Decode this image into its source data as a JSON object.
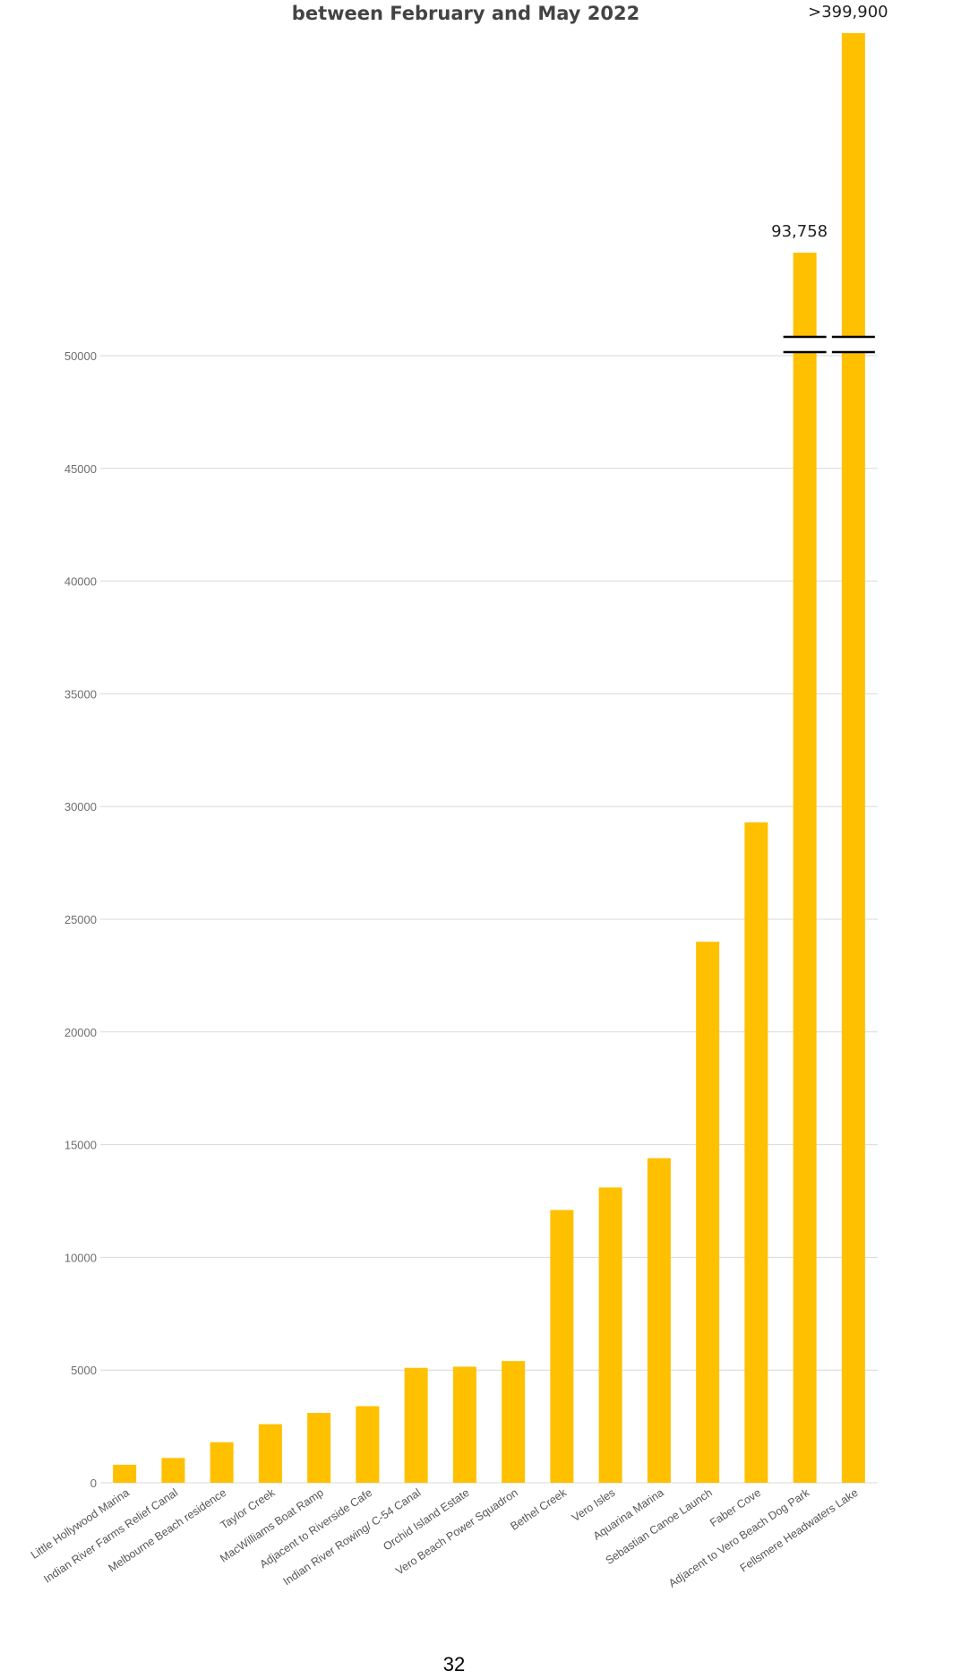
{
  "chart_data": {
    "type": "bar",
    "title": "between February and May 2022",
    "xlabel": "",
    "ylabel": "",
    "ylim": [
      0,
      50000
    ],
    "yticks": [
      0,
      5000,
      10000,
      15000,
      20000,
      25000,
      30000,
      35000,
      40000,
      45000,
      50000
    ],
    "y_axis_break": true,
    "grid": true,
    "legend": "none",
    "bar_color": "#FFC000",
    "categories": [
      "Little Hollywood Marina",
      "Indian River Farms Relief Canal",
      "Melbourne Beach residence",
      "Taylor Creek",
      "MacWilliams Boat Ramp",
      "Adjacent to Riverside Cafe",
      "Indian River Rowing/ C-54 Canal",
      "Orchid Island Estate",
      "Vero Beach Power Squadron",
      "Bethel Creek",
      "Vero Isles",
      "Aquarina Marina",
      "Sebastian Canoe Launch",
      "Faber Cove",
      "Adjacent to Vero Beach Dog Park",
      "Fellsmere Headwaters Lake"
    ],
    "values": [
      800,
      1100,
      1800,
      2600,
      3100,
      3400,
      5100,
      5150,
      5400,
      12100,
      13100,
      14400,
      24000,
      29300,
      93758,
      399900
    ],
    "data_labels": [
      {
        "category": "Adjacent to Vero Beach Dog Park",
        "text": "93,758"
      },
      {
        "category": "Fellsmere Headwaters Lake",
        "text": ">399,900"
      }
    ]
  },
  "page_number": "32"
}
